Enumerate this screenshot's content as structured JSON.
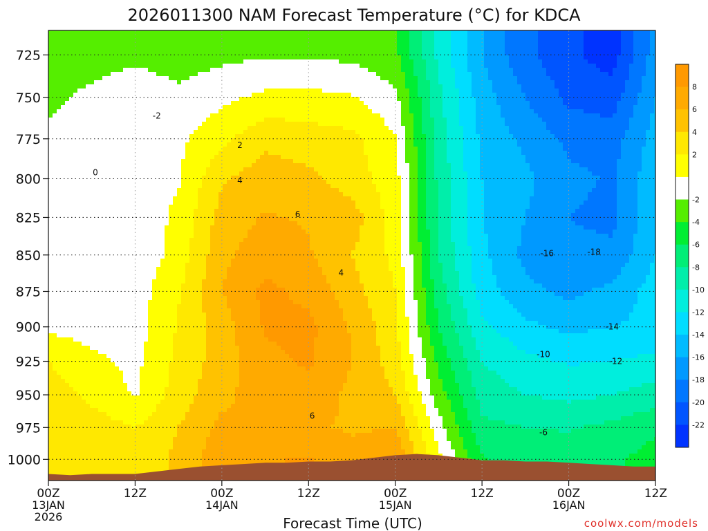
{
  "chart_data": {
    "type": "heatmap",
    "title": "2026011300 NAM Forecast Temperature (°C) for KDCA",
    "xlabel": "Forecast Time (UTC)",
    "credit": "coolwx.com/models",
    "y_ticks": [
      "725",
      "750",
      "775",
      "800",
      "825",
      "850",
      "875",
      "900",
      "925",
      "950",
      "975",
      "1000"
    ],
    "y_range_hpa": [
      1017,
      711
    ],
    "x_range_hours": [
      0,
      84
    ],
    "x_ticks": [
      {
        "hour": 0,
        "label": "00Z",
        "date": "13JAN",
        "year": "2026"
      },
      {
        "hour": 12,
        "label": "12Z",
        "date": "",
        "year": ""
      },
      {
        "hour": 24,
        "label": "00Z",
        "date": "14JAN",
        "year": ""
      },
      {
        "hour": 36,
        "label": "12Z",
        "date": "",
        "year": ""
      },
      {
        "hour": 48,
        "label": "00Z",
        "date": "15JAN",
        "year": ""
      },
      {
        "hour": 60,
        "label": "12Z",
        "date": "",
        "year": ""
      },
      {
        "hour": 72,
        "label": "00Z",
        "date": "16JAN",
        "year": ""
      },
      {
        "hour": 84,
        "label": "12Z",
        "date": "",
        "year": ""
      }
    ],
    "grid": true,
    "colorbar": {
      "placement": "right",
      "labels": [
        "8",
        "6",
        "4",
        "2",
        "-2",
        "-4",
        "-6",
        "-8",
        "-10",
        "-12",
        "-14",
        "-16",
        "-18",
        "-20",
        "-22"
      ],
      "bands": [
        {
          "min": 8,
          "max": 10,
          "color": "#ff9900"
        },
        {
          "min": 6,
          "max": 8,
          "color": "#ffaa00"
        },
        {
          "min": 4,
          "max": 6,
          "color": "#ffc200"
        },
        {
          "min": 2,
          "max": 4,
          "color": "#ffe800"
        },
        {
          "min": 0,
          "max": 2,
          "color": "#ffff00"
        },
        {
          "min": -2,
          "max": 0,
          "color": "#ffffff"
        },
        {
          "min": -4,
          "max": -2,
          "color": "#55ee00"
        },
        {
          "min": -6,
          "max": -4,
          "color": "#00ee33"
        },
        {
          "min": -8,
          "max": -6,
          "color": "#00ee77"
        },
        {
          "min": -10,
          "max": -8,
          "color": "#00eeaa"
        },
        {
          "min": -12,
          "max": -10,
          "color": "#00eedd"
        },
        {
          "min": -14,
          "max": -12,
          "color": "#00ddff"
        },
        {
          "min": -16,
          "max": -14,
          "color": "#00bbff"
        },
        {
          "min": -18,
          "max": -16,
          "color": "#0099ff"
        },
        {
          "min": -20,
          "max": -18,
          "color": "#0077ff"
        },
        {
          "min": -22,
          "max": -20,
          "color": "#0055ff"
        },
        {
          "min": -24,
          "max": -22,
          "color": "#0033ff"
        }
      ]
    },
    "zero_isotherm_color": "#cc1177",
    "terrain_color": "#9a5030",
    "contour_labels": [
      {
        "hour": 15,
        "hpa": 761,
        "text": "-2"
      },
      {
        "hour": 6.5,
        "hpa": 796,
        "text": "0"
      },
      {
        "hour": 26.5,
        "hpa": 779,
        "text": "2"
      },
      {
        "hour": 26.5,
        "hpa": 801,
        "text": "4"
      },
      {
        "hour": 34.5,
        "hpa": 823,
        "text": "6"
      },
      {
        "hour": 40.5,
        "hpa": 862,
        "text": "4"
      },
      {
        "hour": 36.5,
        "hpa": 966,
        "text": "6"
      },
      {
        "hour": 69,
        "hpa": 849,
        "text": "-16"
      },
      {
        "hour": 75.5,
        "hpa": 848,
        "text": "-18"
      },
      {
        "hour": 78,
        "hpa": 900,
        "text": "-14"
      },
      {
        "hour": 68.5,
        "hpa": 920,
        "text": "-10"
      },
      {
        "hour": 78.5,
        "hpa": 925,
        "text": "-12"
      },
      {
        "hour": 68.5,
        "hpa": 979,
        "text": "-6"
      }
    ],
    "series": [
      {
        "hour": [
          0,
          3,
          6,
          9,
          12,
          15,
          18,
          21,
          24,
          27,
          30,
          33,
          36,
          39,
          42,
          45,
          48,
          51,
          54,
          57,
          60,
          63,
          66,
          69,
          72,
          75,
          78,
          81,
          84
        ],
        "surface_pressure_hpa": [
          1012,
          1013,
          1012,
          1012,
          1012,
          1010,
          1008,
          1006,
          1005,
          1004,
          1003,
          1003,
          1002,
          1002,
          1001,
          999,
          997,
          996,
          997,
          999,
          1001,
          1001,
          1002,
          1002,
          1003,
          1004,
          1005,
          1006,
          1006
        ]
      }
    ],
    "temperature_grid_c": {
      "hour": [
        0,
        6,
        12,
        18,
        24,
        30,
        36,
        42,
        48,
        54,
        60,
        66,
        72,
        78,
        84
      ],
      "hpa": [
        1000,
        975,
        950,
        925,
        900,
        875,
        850,
        825,
        800,
        775,
        750,
        725
      ],
      "values": [
        [
          3.5,
          2.8,
          2.5,
          4.5,
          7.5,
          7.8,
          8.2,
          6.5,
          7.8,
          0.5,
          -5.8,
          -7,
          -6.5,
          -6.5,
          -5
        ],
        [
          4,
          3,
          2,
          4,
          6.5,
          6,
          6.2,
          5.8,
          6,
          -1.2,
          -7.5,
          -8,
          -8.2,
          -7.5,
          -6.5
        ],
        [
          3,
          1.5,
          -0.2,
          3,
          5.5,
          7,
          7.2,
          5.5,
          4,
          -3,
          -8.8,
          -10,
          -10.5,
          -10,
          -9
        ],
        [
          2,
          0.5,
          -0.5,
          2.5,
          5,
          7.5,
          8.3,
          6,
          3,
          -4.5,
          -10,
          -11.5,
          -12.2,
          -12,
          -11.5
        ],
        [
          -0.5,
          -0.8,
          -1,
          2.2,
          5,
          8.2,
          8.5,
          5.8,
          2.5,
          -6,
          -11.5,
          -13.5,
          -14.5,
          -14,
          -13.5
        ],
        [
          -1,
          -1.2,
          -1,
          1.8,
          6,
          8.5,
          7.5,
          4.8,
          2,
          -7,
          -13,
          -15.5,
          -16.5,
          -15.5,
          -13
        ],
        [
          -1,
          -1.5,
          -1.5,
          0.8,
          5.5,
          7.2,
          6.2,
          4,
          1.5,
          -8,
          -13.5,
          -16.5,
          -17.5,
          -17.5,
          -14
        ],
        [
          -1,
          -1.5,
          -1.5,
          0.5,
          4.8,
          6.2,
          5.8,
          5,
          1,
          -8.5,
          -14,
          -16,
          -18,
          -18.5,
          -14.5
        ],
        [
          -1.2,
          -0.5,
          -0.8,
          -0.2,
          3.8,
          5,
          4.5,
          3,
          0.8,
          -8.5,
          -14,
          -15.5,
          -17.5,
          -18.2,
          -14.5
        ],
        [
          -1.5,
          -1,
          -0.8,
          -0.5,
          1.5,
          3.5,
          3,
          2.5,
          0.2,
          -9,
          -14.5,
          -16.5,
          -18.5,
          -19,
          -15
        ],
        [
          -2.5,
          -1.5,
          -0.5,
          -1.5,
          -0.5,
          0.5,
          0.6,
          0.2,
          -1.5,
          -9.5,
          -15,
          -18,
          -20.5,
          -21,
          -16
        ],
        [
          -3,
          -3,
          -2.5,
          -3,
          -2.5,
          -2.2,
          -2.2,
          -2.5,
          -3.5,
          -10.5,
          -16,
          -19.5,
          -21.5,
          -23,
          -17
        ]
      ]
    }
  }
}
